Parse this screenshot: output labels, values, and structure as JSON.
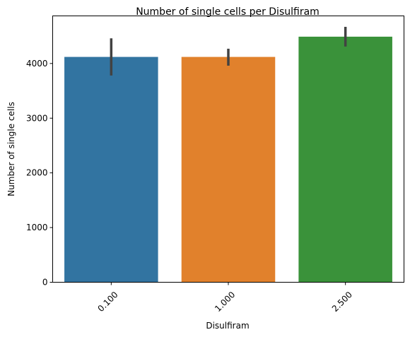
{
  "chart_data": {
    "type": "bar",
    "title": "Number of single cells per Disulfiram",
    "xlabel": "Disulfiram",
    "ylabel": "Number of single cells",
    "categories": [
      "0.100",
      "1.000",
      "2.500"
    ],
    "values": [
      4120,
      4120,
      4490
    ],
    "error_low": [
      3780,
      3960,
      4310
    ],
    "error_high": [
      4460,
      4270,
      4670
    ],
    "ylim": [
      0,
      4870
    ],
    "yticks": [
      0,
      1000,
      2000,
      3000,
      4000
    ],
    "colors": [
      "#3274a1",
      "#e1812c",
      "#3a923a"
    ],
    "error_color": "#424242",
    "grid": false,
    "legend": "none"
  }
}
